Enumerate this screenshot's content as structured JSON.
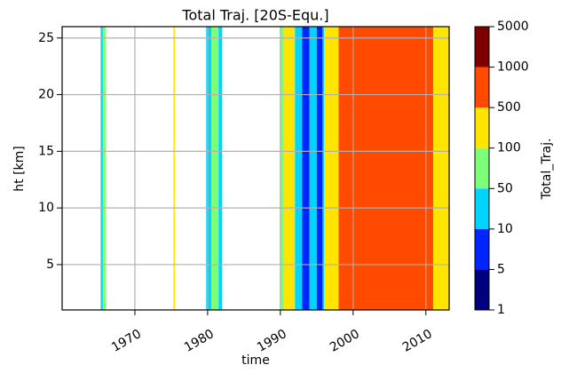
{
  "chart_data": {
    "type": "heatmap",
    "title": "Total Traj. [20S-Equ.]",
    "xlabel": "time",
    "ylabel": "ht [km]",
    "x_edges": [
      1965.3,
      1965.6,
      1966,
      1975.3,
      1975.5,
      1979.8,
      1980.5,
      1981.5,
      1982,
      1990,
      1990.5,
      1992,
      1993,
      1994,
      1995,
      1995.8,
      1996,
      1998,
      2011,
      2013.2
    ],
    "values": [
      30,
      80,
      null,
      200,
      null,
      30,
      70,
      30,
      null,
      70,
      200,
      30,
      8,
      30,
      8,
      30,
      300,
      700,
      300
    ],
    "xlim": [
      1960,
      2013.2
    ],
    "xticks": [
      1970,
      1980,
      1990,
      2000,
      2010
    ],
    "ylim": [
      1,
      26
    ],
    "yticks": [
      5,
      10,
      15,
      20,
      25
    ],
    "grid": true,
    "colorbar": {
      "label": "Total_Traj.",
      "levels": [
        1,
        5,
        10,
        50,
        100,
        500,
        1000,
        5000
      ],
      "colors": [
        "#00007f",
        "#0026ff",
        "#00d5ff",
        "#7dff7a",
        "#ffe500",
        "#ff4a00",
        "#7f0000"
      ]
    }
  }
}
